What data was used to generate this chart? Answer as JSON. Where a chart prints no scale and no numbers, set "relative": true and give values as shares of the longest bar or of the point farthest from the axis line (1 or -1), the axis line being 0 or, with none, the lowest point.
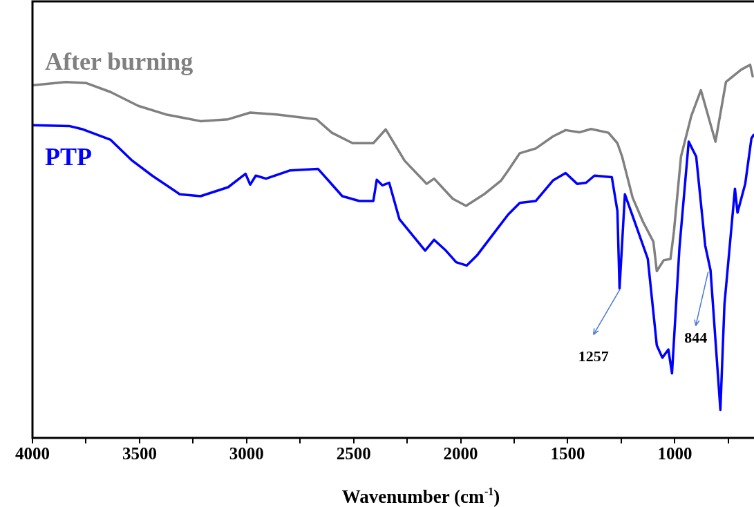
{
  "chart_data": {
    "type": "line",
    "xlabel": "Wavenumber (cm$^{-1}$)",
    "relative": true,
    "legend": false,
    "marker": "none",
    "line_style": "solid",
    "xlim": [
      4000,
      630
    ],
    "xticks": [
      4000,
      {
        "value": 3750,
        "label": null
      },
      3500,
      {
        "value": 3250,
        "label": null
      },
      3000,
      {
        "value": 2750,
        "label": null
      },
      2500,
      {
        "value": 2250,
        "label": null
      },
      2000,
      {
        "value": 1750,
        "label": null
      },
      1500,
      {
        "value": 1250,
        "label": null
      },
      1000,
      {
        "value": 750,
        "label": null
      }
    ],
    "annotations": [
      {
        "text": "1257",
        "x": 1257,
        "y": 0.401
      },
      {
        "text": "844",
        "x": 844,
        "y": 0.449
      }
    ],
    "series": [
      {
        "name": "After burning",
        "color": "#808080",
        "x": [
          4000,
          3845,
          3748,
          3635,
          3506,
          3377,
          3215,
          3086,
          2983,
          2860,
          2673,
          2602,
          2505,
          2408,
          2350,
          2262,
          2159,
          2124,
          2037,
          1975,
          1891,
          1811,
          1778,
          1724,
          1649,
          1569,
          1510,
          1446,
          1391,
          1310,
          1268,
          1246,
          1197,
          1149,
          1100,
          1084,
          1052,
          1020,
          1004,
          971,
          923,
          878,
          810,
          761,
          690,
          648,
          636
        ],
        "values": [
          0.945,
          0.954,
          0.951,
          0.927,
          0.89,
          0.867,
          0.849,
          0.854,
          0.872,
          0.867,
          0.854,
          0.818,
          0.79,
          0.79,
          0.827,
          0.743,
          0.681,
          0.695,
          0.641,
          0.622,
          0.653,
          0.69,
          0.717,
          0.763,
          0.776,
          0.808,
          0.825,
          0.819,
          0.828,
          0.818,
          0.79,
          0.754,
          0.644,
          0.58,
          0.526,
          0.447,
          0.476,
          0.48,
          0.553,
          0.754,
          0.863,
          0.932,
          0.794,
          0.954,
          0.987,
          1.0,
          0.969
        ]
      },
      {
        "name": "PTP",
        "color": "#0000ff",
        "x": [
          4000,
          3829,
          3764,
          3635,
          3538,
          3441,
          3312,
          3215,
          3086,
          3005,
          2983,
          2957,
          2909,
          2796,
          2666,
          2618,
          2553,
          2473,
          2408,
          2392,
          2366,
          2334,
          2286,
          2166,
          2124,
          2069,
          2021,
          1972,
          1924,
          1827,
          1778,
          1724,
          1649,
          1569,
          1510,
          1456,
          1414,
          1375,
          1294,
          1268,
          1258,
          1233,
          1197,
          1126,
          1084,
          1058,
          1030,
          1013,
          978,
          935,
          900,
          858,
          833,
          787,
          768,
          719,
          707,
          671,
          642,
          632
        ],
        "values": [
          0.838,
          0.836,
          0.827,
          0.799,
          0.745,
          0.703,
          0.653,
          0.648,
          0.672,
          0.708,
          0.679,
          0.703,
          0.695,
          0.717,
          0.721,
          0.69,
          0.648,
          0.635,
          0.635,
          0.692,
          0.677,
          0.684,
          0.586,
          0.502,
          0.531,
          0.502,
          0.471,
          0.462,
          0.489,
          0.562,
          0.599,
          0.63,
          0.635,
          0.69,
          0.71,
          0.681,
          0.684,
          0.703,
          0.699,
          0.608,
          0.401,
          0.653,
          0.595,
          0.48,
          0.248,
          0.215,
          0.237,
          0.173,
          0.511,
          0.794,
          0.754,
          0.516,
          0.449,
          0.075,
          0.358,
          0.668,
          0.604,
          0.681,
          0.803,
          0.812
        ]
      }
    ]
  }
}
